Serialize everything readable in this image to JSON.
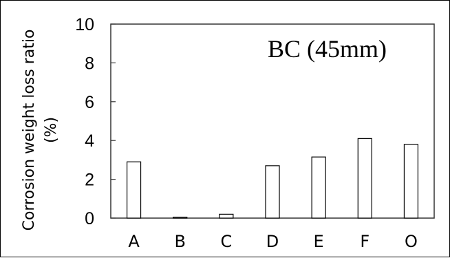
{
  "chart_data": {
    "type": "bar",
    "title": "",
    "annotation": "BC (45mm)",
    "ylabel_line1": "Corrosion weight loss ratio",
    "ylabel_line2": "(%)",
    "xlabel": "",
    "categories": [
      "A",
      "B",
      "C",
      "D",
      "E",
      "F",
      "O"
    ],
    "values": [
      2.9,
      0.05,
      0.2,
      2.7,
      3.15,
      4.1,
      3.8
    ],
    "ylim": [
      0,
      10
    ],
    "yticks": [
      "0",
      "2",
      "4",
      "6",
      "8",
      "10"
    ],
    "grid": false,
    "bar_fill": "#ffffff",
    "bar_stroke": "#000000",
    "axis_color": "#333333"
  }
}
